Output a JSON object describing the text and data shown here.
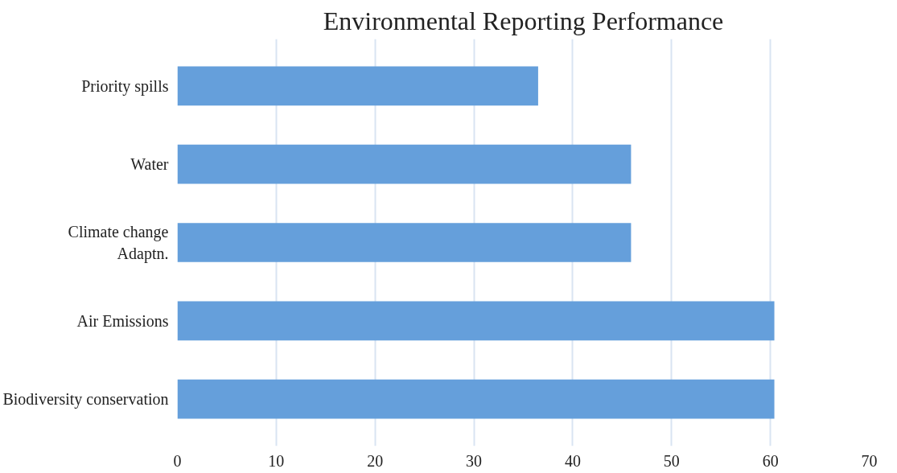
{
  "chart_data": {
    "type": "bar",
    "orientation": "horizontal",
    "title": "Environmental Reporting Performance",
    "categories": [
      "Priority spills",
      "Water",
      "Climate change\nAdaptn.",
      "Air Emissions",
      "Biodiversity conservation"
    ],
    "values": [
      36.5,
      45.9,
      45.9,
      60.4,
      60.4
    ],
    "color": "#659fdb",
    "xlim": [
      0,
      70
    ],
    "xticks": [
      0,
      10,
      20,
      30,
      40,
      50,
      60,
      70
    ],
    "grid": "x"
  }
}
